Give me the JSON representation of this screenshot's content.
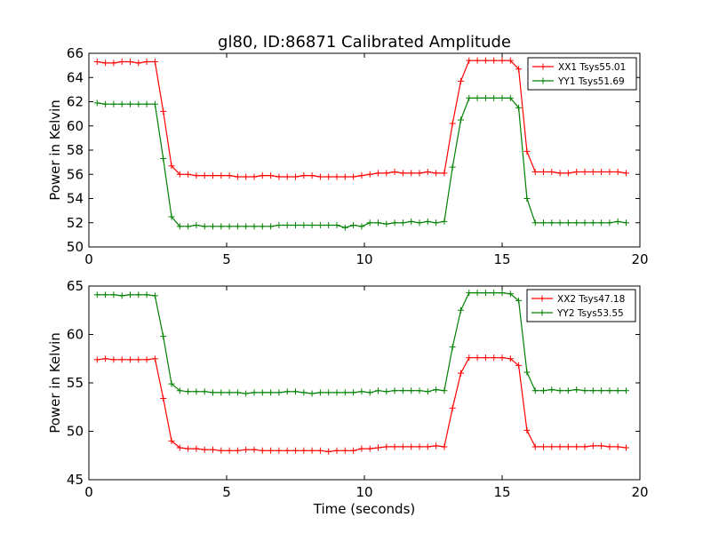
{
  "title": "gl80, ID:86871 Calibrated Amplitude",
  "colors": {
    "xx": "#ff0000",
    "yy": "#008000"
  },
  "chart_data": [
    {
      "type": "line",
      "title": "gl80, ID:86871 Calibrated Amplitude",
      "xlabel": "",
      "ylabel": "Power in Kelvin",
      "xlim": [
        0,
        20
      ],
      "ylim": [
        50,
        66
      ],
      "xticks": [
        0,
        5,
        10,
        15,
        20
      ],
      "yticks": [
        50,
        52,
        54,
        56,
        58,
        60,
        62,
        64,
        66
      ],
      "grid": false,
      "legend": "top-right",
      "x": [
        0.3,
        0.6,
        0.9,
        1.2,
        1.5,
        1.8,
        2.1,
        2.4,
        2.7,
        3.0,
        3.3,
        3.6,
        3.9,
        4.2,
        4.5,
        4.8,
        5.1,
        5.4,
        5.7,
        6.0,
        6.3,
        6.6,
        6.9,
        7.2,
        7.5,
        7.8,
        8.1,
        8.4,
        8.7,
        9.0,
        9.3,
        9.6,
        9.9,
        10.2,
        10.5,
        10.8,
        11.1,
        11.4,
        11.7,
        12.0,
        12.3,
        12.6,
        12.9,
        13.2,
        13.5,
        13.8,
        14.1,
        14.4,
        14.7,
        15.0,
        15.3,
        15.6,
        15.9,
        16.2,
        16.5,
        16.8,
        17.1,
        17.4,
        17.7,
        18.0,
        18.3,
        18.6,
        18.9,
        19.2,
        19.5
      ],
      "series": [
        {
          "name": "XX1 Tsys55.01",
          "color": "#ff0000",
          "values": [
            65.3,
            65.2,
            65.2,
            65.3,
            65.3,
            65.2,
            65.3,
            65.3,
            61.2,
            56.7,
            56.0,
            56.0,
            55.9,
            55.9,
            55.9,
            55.9,
            55.9,
            55.8,
            55.8,
            55.8,
            55.9,
            55.9,
            55.8,
            55.8,
            55.8,
            55.9,
            55.9,
            55.8,
            55.8,
            55.8,
            55.8,
            55.8,
            55.9,
            56.0,
            56.1,
            56.1,
            56.2,
            56.1,
            56.1,
            56.1,
            56.2,
            56.1,
            56.1,
            60.2,
            63.7,
            65.4,
            65.4,
            65.4,
            65.4,
            65.4,
            65.4,
            64.7,
            57.9,
            56.2,
            56.2,
            56.2,
            56.1,
            56.1,
            56.2,
            56.2,
            56.2,
            56.2,
            56.2,
            56.2,
            56.1
          ]
        },
        {
          "name": "YY1 Tsys51.69",
          "color": "#008000",
          "values": [
            61.9,
            61.8,
            61.8,
            61.8,
            61.8,
            61.8,
            61.8,
            61.8,
            57.3,
            52.5,
            51.7,
            51.7,
            51.8,
            51.7,
            51.7,
            51.7,
            51.7,
            51.7,
            51.7,
            51.7,
            51.7,
            51.7,
            51.8,
            51.8,
            51.8,
            51.8,
            51.8,
            51.8,
            51.8,
            51.8,
            51.6,
            51.8,
            51.7,
            52.0,
            52.0,
            51.9,
            52.0,
            52.0,
            52.1,
            52.0,
            52.1,
            52.0,
            52.1,
            56.6,
            60.5,
            62.3,
            62.3,
            62.3,
            62.3,
            62.3,
            62.3,
            61.5,
            54.0,
            52.0,
            52.0,
            52.0,
            52.0,
            52.0,
            52.0,
            52.0,
            52.0,
            52.0,
            52.0,
            52.1,
            52.0
          ]
        }
      ]
    },
    {
      "type": "line",
      "title": "",
      "xlabel": "Time (seconds)",
      "ylabel": "Power in Kelvin",
      "xlim": [
        0,
        20
      ],
      "ylim": [
        45,
        65
      ],
      "xticks": [
        0,
        5,
        10,
        15,
        20
      ],
      "yticks": [
        45,
        50,
        55,
        60,
        65
      ],
      "grid": false,
      "legend": "top-right",
      "x": [
        0.3,
        0.6,
        0.9,
        1.2,
        1.5,
        1.8,
        2.1,
        2.4,
        2.7,
        3.0,
        3.3,
        3.6,
        3.9,
        4.2,
        4.5,
        4.8,
        5.1,
        5.4,
        5.7,
        6.0,
        6.3,
        6.6,
        6.9,
        7.2,
        7.5,
        7.8,
        8.1,
        8.4,
        8.7,
        9.0,
        9.3,
        9.6,
        9.9,
        10.2,
        10.5,
        10.8,
        11.1,
        11.4,
        11.7,
        12.0,
        12.3,
        12.6,
        12.9,
        13.2,
        13.5,
        13.8,
        14.1,
        14.4,
        14.7,
        15.0,
        15.3,
        15.6,
        15.9,
        16.2,
        16.5,
        16.8,
        17.1,
        17.4,
        17.7,
        18.0,
        18.3,
        18.6,
        18.9,
        19.2,
        19.5
      ],
      "series": [
        {
          "name": "XX2 Tsys47.18",
          "color": "#ff0000",
          "values": [
            57.4,
            57.5,
            57.4,
            57.4,
            57.4,
            57.4,
            57.4,
            57.5,
            53.4,
            49.0,
            48.3,
            48.2,
            48.2,
            48.1,
            48.1,
            48.0,
            48.0,
            48.0,
            48.1,
            48.1,
            48.0,
            48.0,
            48.0,
            48.0,
            48.0,
            48.0,
            48.0,
            48.0,
            47.9,
            48.0,
            48.0,
            48.0,
            48.2,
            48.2,
            48.3,
            48.4,
            48.4,
            48.4,
            48.4,
            48.4,
            48.4,
            48.5,
            48.4,
            52.4,
            56.0,
            57.6,
            57.6,
            57.6,
            57.6,
            57.6,
            57.5,
            56.8,
            50.1,
            48.4,
            48.4,
            48.4,
            48.4,
            48.4,
            48.4,
            48.4,
            48.5,
            48.5,
            48.4,
            48.4,
            48.3
          ]
        },
        {
          "name": "YY2 Tsys53.55",
          "color": "#008000",
          "values": [
            64.1,
            64.1,
            64.1,
            64.0,
            64.1,
            64.1,
            64.1,
            64.0,
            59.8,
            54.9,
            54.2,
            54.1,
            54.1,
            54.1,
            54.0,
            54.0,
            54.0,
            54.0,
            53.9,
            54.0,
            54.0,
            54.0,
            54.0,
            54.1,
            54.1,
            54.0,
            53.9,
            54.0,
            54.0,
            54.0,
            54.0,
            54.0,
            54.1,
            54.0,
            54.2,
            54.1,
            54.2,
            54.2,
            54.2,
            54.2,
            54.1,
            54.3,
            54.2,
            58.7,
            62.5,
            64.3,
            64.3,
            64.3,
            64.3,
            64.3,
            64.2,
            63.5,
            56.1,
            54.2,
            54.2,
            54.3,
            54.2,
            54.2,
            54.3,
            54.2,
            54.2,
            54.2,
            54.2,
            54.2,
            54.2
          ]
        }
      ]
    }
  ]
}
